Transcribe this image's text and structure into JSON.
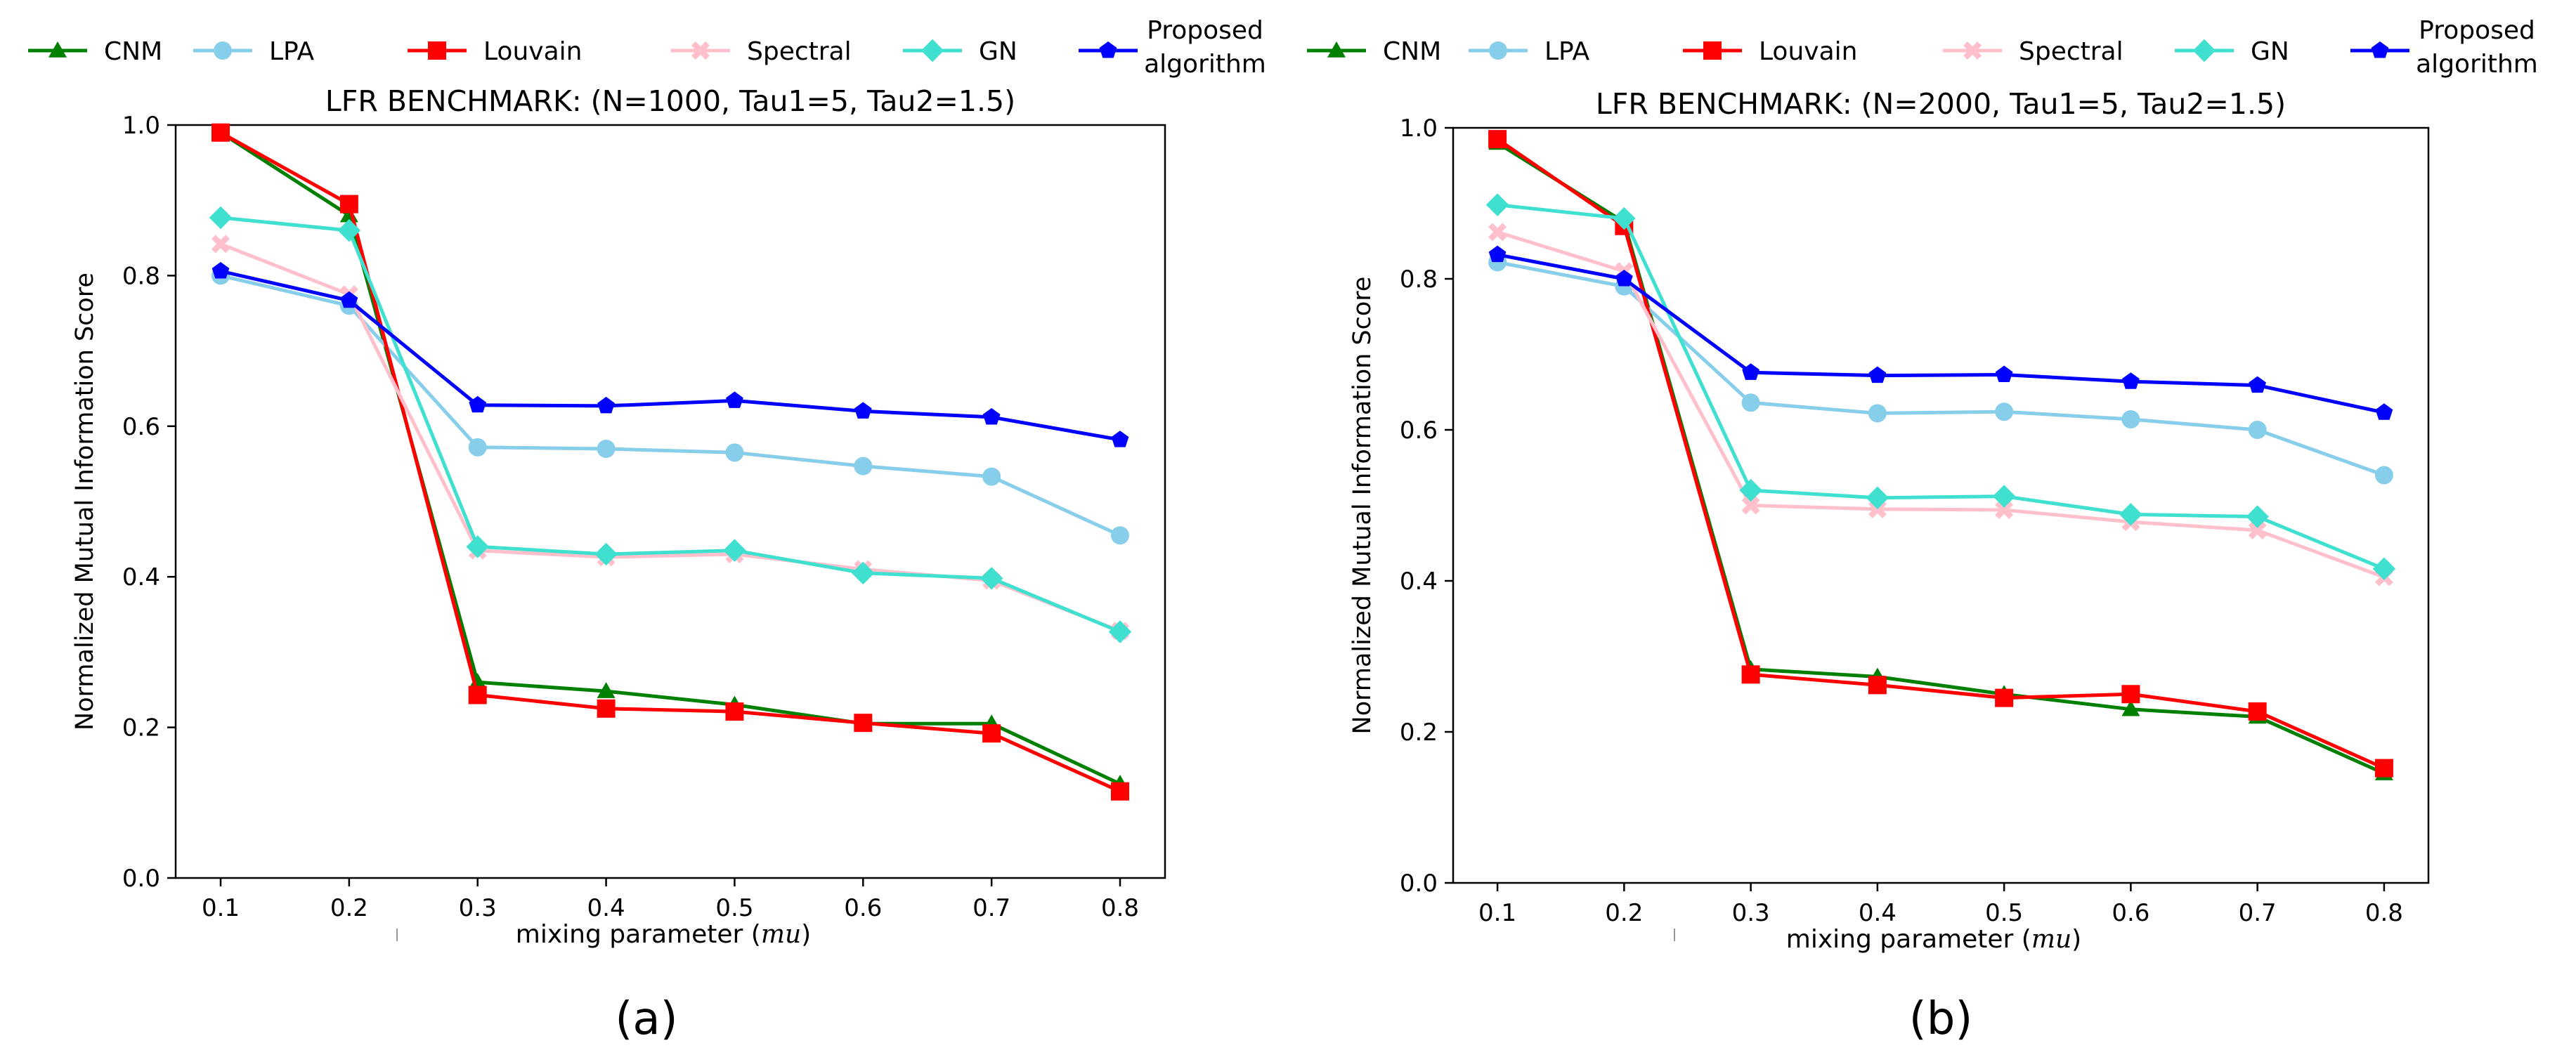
{
  "legend": [
    {
      "name": "CNM",
      "color": "#008000",
      "marker": "triangle"
    },
    {
      "name": "LPA",
      "color": "#87ceeb",
      "marker": "circle"
    },
    {
      "name": "Louvain",
      "color": "#ff0000",
      "marker": "square"
    },
    {
      "name": "Spectral",
      "color": "#ffc0cb",
      "marker": "x"
    },
    {
      "name": "GN",
      "color": "#40e0d0",
      "marker": "diamond"
    },
    {
      "name": "Proposed algorithm",
      "lines": [
        "Proposed",
        "algorithm"
      ],
      "color": "#0000ff",
      "marker": "pentagon"
    }
  ],
  "chart_data": [
    {
      "type": "line",
      "panel_label": "(a)",
      "title": "LFR BENCHMARK: (N=1000, Tau1=5, Tau2=1.5)",
      "xlabel": "mixing parameter (",
      "xlabel_math": "mu",
      "xlabel_close": ")",
      "ylabel": "Normalized Mutual Information Score",
      "x": [
        0.1,
        0.2,
        0.3,
        0.4,
        0.5,
        0.6,
        0.7,
        0.8
      ],
      "x_tick_labels": [
        "0.1",
        "0.2",
        "0.3",
        "0.4",
        "0.5",
        "0.6",
        "0.7",
        "0.8"
      ],
      "y_ticks": [
        0.0,
        0.2,
        0.4,
        0.6,
        0.8,
        1.0
      ],
      "y_tick_labels": [
        "0.0",
        "0.2",
        "0.4",
        "0.6",
        "0.8",
        "1.0"
      ],
      "xlim": [
        0.065,
        0.835
      ],
      "ylim": [
        0.0,
        1.0
      ],
      "series": [
        {
          "name": "CNM",
          "values": [
            0.99,
            0.88,
            0.26,
            0.248,
            0.23,
            0.205,
            0.205,
            0.125
          ]
        },
        {
          "name": "LPA",
          "values": [
            0.8,
            0.76,
            0.572,
            0.57,
            0.565,
            0.547,
            0.533,
            0.455
          ]
        },
        {
          "name": "Louvain",
          "values": [
            0.99,
            0.895,
            0.243,
            0.225,
            0.221,
            0.206,
            0.192,
            0.115
          ]
        },
        {
          "name": "Spectral",
          "values": [
            0.842,
            0.775,
            0.435,
            0.426,
            0.43,
            0.41,
            0.395,
            0.328
          ]
        },
        {
          "name": "GN",
          "values": [
            0.877,
            0.86,
            0.44,
            0.43,
            0.435,
            0.405,
            0.398,
            0.327
          ]
        },
        {
          "name": "Proposed algorithm",
          "values": [
            0.806,
            0.767,
            0.628,
            0.627,
            0.634,
            0.62,
            0.612,
            0.582
          ]
        }
      ]
    },
    {
      "type": "line",
      "panel_label": "(b)",
      "title": "LFR BENCHMARK: (N=2000, Tau1=5, Tau2=1.5)",
      "xlabel": "mixing parameter (",
      "xlabel_math": "mu",
      "xlabel_close": ")",
      "ylabel": "Normalized Mutual Information Score",
      "x": [
        0.1,
        0.2,
        0.3,
        0.4,
        0.5,
        0.6,
        0.7,
        0.8
      ],
      "x_tick_labels": [
        "0.1",
        "0.2",
        "0.3",
        "0.4",
        "0.5",
        "0.6",
        "0.7",
        "0.8"
      ],
      "y_ticks": [
        0.0,
        0.2,
        0.4,
        0.6,
        0.8,
        1.0
      ],
      "y_tick_labels": [
        "0.0",
        "0.2",
        "0.4",
        "0.6",
        "0.8",
        "1.0"
      ],
      "xlim": [
        0.065,
        0.835
      ],
      "ylim": [
        0.0,
        1.0
      ],
      "series": [
        {
          "name": "CNM",
          "values": [
            0.98,
            0.875,
            0.283,
            0.273,
            0.25,
            0.23,
            0.22,
            0.145
          ]
        },
        {
          "name": "LPA",
          "values": [
            0.822,
            0.79,
            0.636,
            0.622,
            0.624,
            0.614,
            0.6,
            0.54
          ]
        },
        {
          "name": "Louvain",
          "values": [
            0.985,
            0.87,
            0.276,
            0.262,
            0.245,
            0.25,
            0.227,
            0.152
          ]
        },
        {
          "name": "Spectral",
          "values": [
            0.862,
            0.81,
            0.5,
            0.495,
            0.494,
            0.478,
            0.467,
            0.405
          ]
        },
        {
          "name": "GN",
          "values": [
            0.898,
            0.88,
            0.52,
            0.51,
            0.512,
            0.488,
            0.485,
            0.416
          ]
        },
        {
          "name": "Proposed algorithm",
          "values": [
            0.832,
            0.8,
            0.676,
            0.672,
            0.673,
            0.664,
            0.659,
            0.623
          ]
        }
      ]
    }
  ]
}
